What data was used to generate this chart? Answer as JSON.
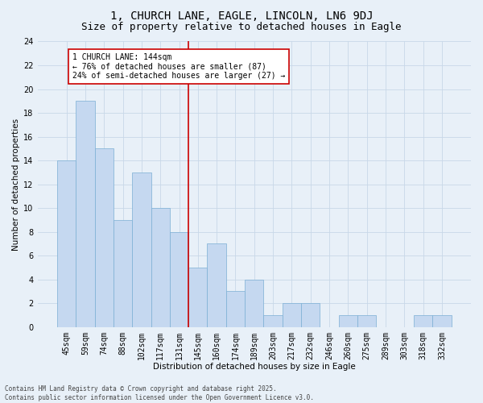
{
  "title": "1, CHURCH LANE, EAGLE, LINCOLN, LN6 9DJ",
  "subtitle": "Size of property relative to detached houses in Eagle",
  "xlabel": "Distribution of detached houses by size in Eagle",
  "ylabel": "Number of detached properties",
  "categories": [
    "45sqm",
    "59sqm",
    "74sqm",
    "88sqm",
    "102sqm",
    "117sqm",
    "131sqm",
    "145sqm",
    "160sqm",
    "174sqm",
    "189sqm",
    "203sqm",
    "217sqm",
    "232sqm",
    "246sqm",
    "260sqm",
    "275sqm",
    "289sqm",
    "303sqm",
    "318sqm",
    "332sqm"
  ],
  "values": [
    14,
    19,
    15,
    9,
    13,
    10,
    8,
    5,
    7,
    3,
    4,
    1,
    2,
    2,
    0,
    1,
    1,
    0,
    0,
    1,
    1
  ],
  "bar_color": "#c5d8f0",
  "bar_edge_color": "#7bafd4",
  "highlight_index": 7,
  "highlight_line_color": "#cc0000",
  "ylim": [
    0,
    24
  ],
  "yticks": [
    0,
    2,
    4,
    6,
    8,
    10,
    12,
    14,
    16,
    18,
    20,
    22,
    24
  ],
  "annotation_text": "1 CHURCH LANE: 144sqm\n← 76% of detached houses are smaller (87)\n24% of semi-detached houses are larger (27) →",
  "annotation_box_color": "#ffffff",
  "annotation_box_edge": "#cc0000",
  "grid_color": "#c8d8e8",
  "bg_color": "#e8f0f8",
  "footer": "Contains HM Land Registry data © Crown copyright and database right 2025.\nContains public sector information licensed under the Open Government Licence v3.0.",
  "title_fontsize": 10,
  "subtitle_fontsize": 9,
  "axis_label_fontsize": 7.5,
  "tick_fontsize": 7,
  "annotation_fontsize": 7,
  "footer_fontsize": 5.5
}
